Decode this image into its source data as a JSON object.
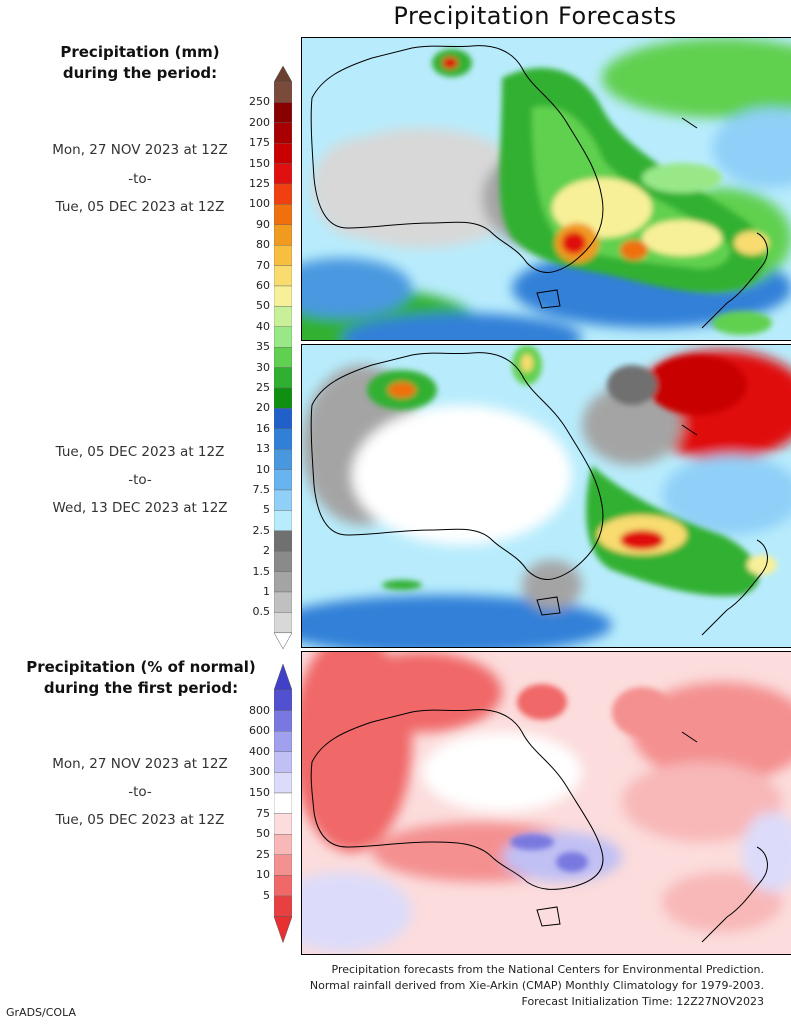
{
  "title": "Precipitation Forecasts",
  "amount_legend": {
    "heading_line1": "Precipitation (mm)",
    "heading_line2": "during the period:",
    "labels": [
      "250",
      "200",
      "175",
      "150",
      "125",
      "100",
      "90",
      "80",
      "70",
      "60",
      "50",
      "40",
      "35",
      "30",
      "25",
      "20",
      "16",
      "13",
      "10",
      "7.5",
      "5",
      "2.5",
      "2",
      "1.5",
      "1",
      "0.5"
    ],
    "colors": [
      "#7a4a3a",
      "#880000",
      "#a80000",
      "#c80000",
      "#e01010",
      "#f04010",
      "#f07010",
      "#f09a20",
      "#f8be40",
      "#f8dc70",
      "#f8f098",
      "#c8f098",
      "#98e888",
      "#60d050",
      "#30b030",
      "#109010",
      "#2060c8",
      "#3080d8",
      "#4898e0",
      "#68b4f0",
      "#90d0f8",
      "#b8ecfc",
      "#707070",
      "#8a8a8a",
      "#a4a4a4",
      "#c0c0c0",
      "#d8d8d8"
    ],
    "top_arrow_color": "#6a4030",
    "bottom_arrow_color": "#ffffff"
  },
  "periods": [
    {
      "start": "Mon, 27 NOV 2023 at 12Z",
      "sep": "-to-",
      "end": "Tue, 05 DEC 2023 at 12Z"
    },
    {
      "start": "Tue, 05 DEC 2023 at 12Z",
      "sep": "-to-",
      "end": "Wed, 13 DEC 2023 at 12Z"
    }
  ],
  "anomaly_legend": {
    "heading_line1": "Precipitation (% of normal)",
    "heading_line2": "during the first period:",
    "labels": [
      "800",
      "600",
      "400",
      "300",
      "150",
      "75",
      "50",
      "25",
      "10",
      "5"
    ],
    "colors": [
      "#5050d0",
      "#7878e0",
      "#a0a0ee",
      "#c0c0f4",
      "#dcdcfa",
      "#ffffff",
      "#fcdcdc",
      "#f8b8b8",
      "#f49090",
      "#f06868",
      "#e84040"
    ],
    "top_arrow_color": "#4040c8",
    "bottom_arrow_color": "#e83030"
  },
  "anomaly_period": {
    "start": "Mon, 27 NOV 2023 at 12Z",
    "sep": "-to-",
    "end": "Tue, 05 DEC 2023 at 12Z"
  },
  "footer": {
    "line1": "Precipitation forecasts from the National Centers for Environmental Prediction.",
    "line2": "Normal rainfall derived from Xie-Arkin (CMAP) Monthly Climatology for 1979-2003.",
    "line3": "Forecast Initialization Time: 12Z27NOV2023"
  },
  "credit": "GrADS/COLA"
}
